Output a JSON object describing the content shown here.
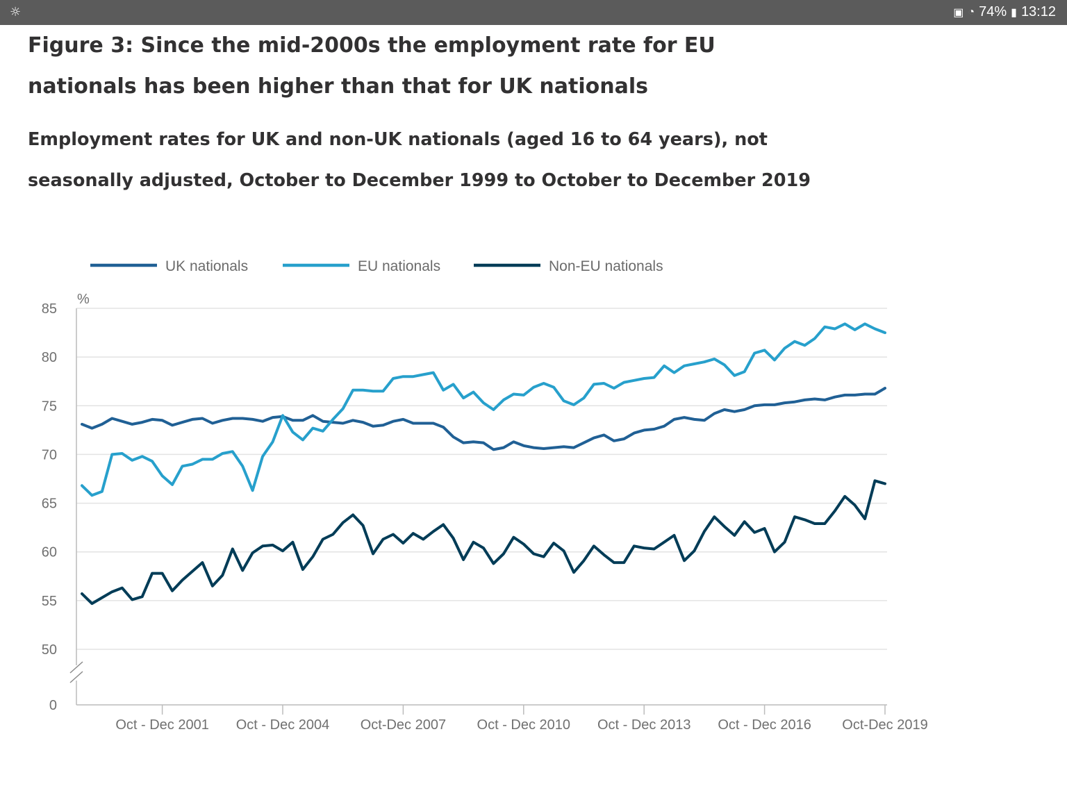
{
  "status_bar": {
    "left_icon": "weather-icon",
    "battery": "74%",
    "time": "13:12"
  },
  "title": "Figure 3: Since the mid-2000s the employment rate for EU nationals has been higher than that for UK nationals",
  "subtitle": "Employment rates for UK and non-UK nationals (aged 16 to 64 years), not seasonally adjusted, October to December 1999 to October to December 2019",
  "colors": {
    "uk": "#206095",
    "eu": "#27a0cc",
    "noneu": "#003c57",
    "grid": "#e3e3e3",
    "axis": "#bcbcbc"
  },
  "chart_data": {
    "type": "line",
    "ylabel": "%",
    "yticks": [
      0,
      50,
      55,
      60,
      65,
      70,
      75,
      80,
      85
    ],
    "ylim": [
      50,
      85
    ],
    "axis_break": true,
    "legend_position": "top",
    "x_start": "Oct-Dec 1999",
    "x_end": "Oct-Dec 2019",
    "frequency": "quarterly",
    "x_tick_labels": [
      {
        "index": 8,
        "label": "Oct - Dec 2001"
      },
      {
        "index": 20,
        "label": "Oct - Dec 2004"
      },
      {
        "index": 32,
        "label": "Oct-Dec 2007"
      },
      {
        "index": 44,
        "label": "Oct - Dec 2010"
      },
      {
        "index": 56,
        "label": "Oct - Dec 2013"
      },
      {
        "index": 68,
        "label": "Oct - Dec 2016"
      },
      {
        "index": 80,
        "label": "Oct-Dec 2019"
      }
    ],
    "series": [
      {
        "name": "UK nationals",
        "key": "uk",
        "values": [
          73.1,
          72.7,
          73.1,
          73.7,
          73.4,
          73.1,
          73.3,
          73.6,
          73.5,
          73.0,
          73.3,
          73.6,
          73.7,
          73.2,
          73.5,
          73.7,
          73.7,
          73.6,
          73.4,
          73.8,
          73.9,
          73.5,
          73.5,
          74.0,
          73.4,
          73.3,
          73.2,
          73.5,
          73.3,
          72.9,
          73.0,
          73.4,
          73.6,
          73.2,
          73.2,
          73.2,
          72.8,
          71.8,
          71.2,
          71.3,
          71.2,
          70.5,
          70.7,
          71.3,
          70.9,
          70.7,
          70.6,
          70.7,
          70.8,
          70.7,
          71.2,
          71.7,
          72.0,
          71.4,
          71.6,
          72.2,
          72.5,
          72.6,
          72.9,
          73.6,
          73.8,
          73.6,
          73.5,
          74.2,
          74.6,
          74.4,
          74.6,
          75.0,
          75.1,
          75.1,
          75.3,
          75.4,
          75.6,
          75.7,
          75.6,
          75.9,
          76.1,
          76.1,
          76.2,
          76.2,
          76.8
        ]
      },
      {
        "name": "EU nationals",
        "key": "eu",
        "values": [
          66.8,
          65.8,
          66.2,
          70.0,
          70.1,
          69.4,
          69.8,
          69.3,
          67.8,
          66.9,
          68.8,
          69.0,
          69.5,
          69.5,
          70.1,
          70.3,
          68.8,
          66.3,
          69.8,
          71.3,
          74.0,
          72.3,
          71.5,
          72.7,
          72.4,
          73.6,
          74.7,
          76.6,
          76.6,
          76.5,
          76.5,
          77.8,
          78.0,
          78.0,
          78.2,
          78.4,
          76.6,
          77.2,
          75.8,
          76.4,
          75.3,
          74.6,
          75.6,
          76.2,
          76.1,
          76.9,
          77.3,
          76.9,
          75.5,
          75.1,
          75.8,
          77.2,
          77.3,
          76.8,
          77.4,
          77.6,
          77.8,
          77.9,
          79.1,
          78.4,
          79.1,
          79.3,
          79.5,
          79.8,
          79.2,
          78.1,
          78.5,
          80.4,
          80.7,
          79.7,
          80.9,
          81.6,
          81.2,
          81.9,
          83.1,
          82.9,
          83.4,
          82.8,
          83.4,
          82.9,
          82.5
        ]
      },
      {
        "name": "Non-EU nationals",
        "key": "noneu",
        "values": [
          55.7,
          54.7,
          55.3,
          55.9,
          56.3,
          55.1,
          55.4,
          57.8,
          57.8,
          56.0,
          57.1,
          58.0,
          58.9,
          56.5,
          57.6,
          60.3,
          58.1,
          59.9,
          60.6,
          60.7,
          60.1,
          61.0,
          58.2,
          59.5,
          61.3,
          61.8,
          63.0,
          63.8,
          62.7,
          59.8,
          61.3,
          61.8,
          60.9,
          61.9,
          61.3,
          62.1,
          62.8,
          61.4,
          59.2,
          61.0,
          60.4,
          58.8,
          59.8,
          61.5,
          60.8,
          59.8,
          59.5,
          60.9,
          60.1,
          57.9,
          59.1,
          60.6,
          59.7,
          58.9,
          58.9,
          60.6,
          60.4,
          60.3,
          61.0,
          61.7,
          59.1,
          60.1,
          62.1,
          63.6,
          62.6,
          61.7,
          63.1,
          62.0,
          62.4,
          60.0,
          61.0,
          63.6,
          63.3,
          62.9,
          62.9,
          64.2,
          65.7,
          64.8,
          63.4,
          67.3,
          67.0
        ]
      }
    ]
  }
}
